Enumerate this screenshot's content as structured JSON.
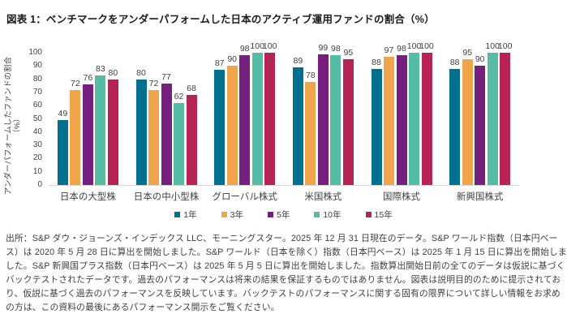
{
  "title": "図表 1：ベンチマークをアンダーパフォームした日本のアクティブ運用ファンドの割合（%）",
  "chart_data": {
    "type": "bar",
    "title": "図表 1：ベンチマークをアンダーパフォームした日本のアクティブ運用ファンドの割合（%）",
    "ylabel": "アンダーパフォームしたファンドの割合",
    "ylabel_unit": "（%）",
    "xlabel": "",
    "ylim": [
      0,
      100
    ],
    "yticks": [
      0,
      10,
      20,
      30,
      40,
      50,
      60,
      70,
      80,
      90,
      100
    ],
    "grid": false,
    "legend_position": "bottom",
    "categories": [
      "日本の大型株",
      "日本の中小型株",
      "グローバル株式",
      "米国株式",
      "国際株式",
      "新興国株式"
    ],
    "series": [
      {
        "name": "1年",
        "color": "#01708f",
        "values": [
          49,
          80,
          87,
          89,
          88,
          88
        ]
      },
      {
        "name": "3年",
        "color": "#f0a54d",
        "values": [
          72,
          72,
          90,
          78,
          97,
          95
        ]
      },
      {
        "name": "5年",
        "color": "#75207f",
        "values": [
          76,
          77,
          98,
          99,
          98,
          90
        ]
      },
      {
        "name": "10年",
        "color": "#57bca5",
        "values": [
          83,
          62,
          100,
          98,
          100,
          100
        ]
      },
      {
        "name": "15年",
        "color": "#b62355",
        "values": [
          80,
          68,
          100,
          95,
          100,
          100
        ]
      }
    ]
  },
  "footer": {
    "lines": [
      "出所：S&P ダウ・ジョーンズ・インデックス LLC、モーニングスター。2025 年 12 月 31 日現在のデータ。S&P ワールド指数（日本円ベー",
      "ス）は 2020 年 5 月 28 日に算出を開始しました。S&P ワールド（日本を除く）指数（日本円ベース）は 2025 年 1 月 15 日に算出を開始しま",
      "した。S&P 新興国プラス指数（日本円ベース）は 2025 年 5 月 5 日に算出を開始しました。指数算出開始日前の全てのデータは仮説に基づく",
      "バックテストされたデータです。過去のパフォーマンスは将来の結果を保証するものではありません。図表は説明目的のために提示されてお",
      "り、仮説に基づく過去のパフォーマンスを反映しています。バックテストのパフォーマンスに関する固有の限界について詳しい情報をお求め",
      "の方は、この資料の最後にあるパフォーマンス開示をご覧ください。"
    ]
  }
}
